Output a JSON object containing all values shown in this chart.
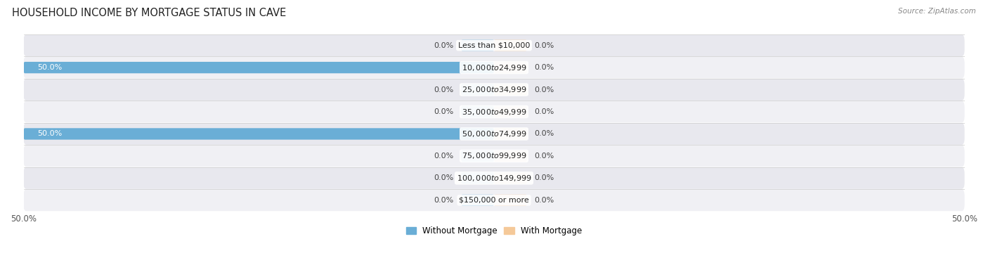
{
  "title": "HOUSEHOLD INCOME BY MORTGAGE STATUS IN CAVE",
  "source": "Source: ZipAtlas.com",
  "categories": [
    "Less than $10,000",
    "$10,000 to $24,999",
    "$25,000 to $34,999",
    "$35,000 to $49,999",
    "$50,000 to $74,999",
    "$75,000 to $99,999",
    "$100,000 to $149,999",
    "$150,000 or more"
  ],
  "without_mortgage": [
    0.0,
    50.0,
    0.0,
    0.0,
    50.0,
    0.0,
    0.0,
    0.0
  ],
  "with_mortgage": [
    0.0,
    0.0,
    0.0,
    0.0,
    0.0,
    0.0,
    0.0,
    0.0
  ],
  "without_mortgage_color": "#6aaed6",
  "with_mortgage_color": "#f5c999",
  "row_bg_colors": [
    "#f0f0f4",
    "#e8e8ee"
  ],
  "xlim": [
    -50,
    50
  ],
  "title_fontsize": 10.5,
  "label_fontsize": 8,
  "tick_fontsize": 8.5,
  "bar_height": 0.52
}
